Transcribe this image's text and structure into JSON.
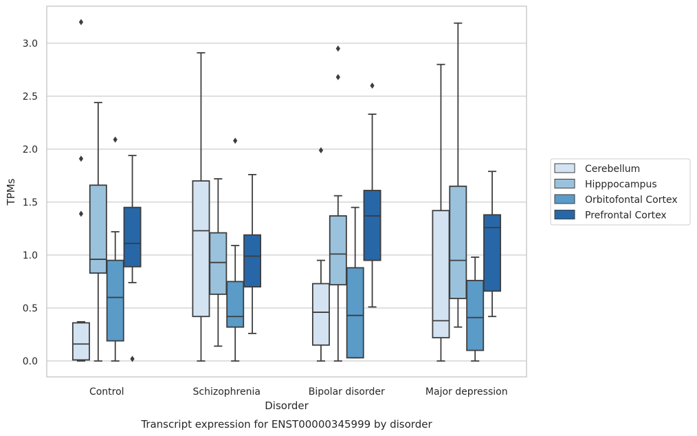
{
  "chart_data": {
    "type": "box",
    "title": "Transcript expression for ENST00000345999 by disorder",
    "xlabel": "Disorder",
    "ylabel": "TPMs",
    "ylim": [
      -0.15,
      3.35
    ],
    "yticks": [
      "0.0",
      "0.5",
      "1.0",
      "1.5",
      "2.0",
      "2.5",
      "3.0"
    ],
    "grid": true,
    "legend_position": "right",
    "categories": [
      "Control",
      "Schizophrenia",
      "Bipolar disorder",
      "Major depression"
    ],
    "series": [
      {
        "name": "Cerebellum",
        "color": "#d4e3f2",
        "boxes": [
          {
            "category": "Control",
            "min": 0.0,
            "q1": 0.01,
            "median": 0.16,
            "q3": 0.36,
            "max": 0.37,
            "outliers": [
              3.2,
              1.91,
              1.39
            ]
          },
          {
            "category": "Schizophrenia",
            "min": 0.0,
            "q1": 0.42,
            "median": 1.23,
            "q3": 1.7,
            "max": 2.91,
            "outliers": []
          },
          {
            "category": "Bipolar disorder",
            "min": 0.0,
            "q1": 0.15,
            "median": 0.46,
            "q3": 0.73,
            "max": 0.95,
            "outliers": [
              1.99
            ]
          },
          {
            "category": "Major depression",
            "min": 0.0,
            "q1": 0.22,
            "median": 0.38,
            "q3": 1.42,
            "max": 2.8,
            "outliers": []
          }
        ]
      },
      {
        "name": "Hipppocampus",
        "color": "#9ac2dc",
        "boxes": [
          {
            "category": "Control",
            "min": 0.0,
            "q1": 0.83,
            "median": 0.96,
            "q3": 1.66,
            "max": 2.44,
            "outliers": []
          },
          {
            "category": "Schizophrenia",
            "min": 0.14,
            "q1": 0.63,
            "median": 0.93,
            "q3": 1.21,
            "max": 1.72,
            "outliers": []
          },
          {
            "category": "Bipolar disorder",
            "min": 0.0,
            "q1": 0.72,
            "median": 1.01,
            "q3": 1.37,
            "max": 1.56,
            "outliers": [
              2.95,
              2.68
            ]
          },
          {
            "category": "Major depression",
            "min": 0.32,
            "q1": 0.59,
            "median": 0.95,
            "q3": 1.65,
            "max": 3.19,
            "outliers": []
          }
        ]
      },
      {
        "name": "Orbitofontal Cortex",
        "color": "#5a9bc8",
        "boxes": [
          {
            "category": "Control",
            "min": 0.0,
            "q1": 0.19,
            "median": 0.6,
            "q3": 0.95,
            "max": 1.22,
            "outliers": [
              2.09
            ]
          },
          {
            "category": "Schizophrenia",
            "min": 0.0,
            "q1": 0.32,
            "median": 0.42,
            "q3": 0.75,
            "max": 1.09,
            "outliers": [
              2.08
            ]
          },
          {
            "category": "Bipolar disorder",
            "min": 0.03,
            "q1": 0.03,
            "median": 0.43,
            "q3": 0.88,
            "max": 1.45,
            "outliers": []
          },
          {
            "category": "Major depression",
            "min": 0.0,
            "q1": 0.1,
            "median": 0.41,
            "q3": 0.76,
            "max": 0.98,
            "outliers": []
          }
        ]
      },
      {
        "name": "Prefrontal Cortex",
        "color": "#2767a8",
        "boxes": [
          {
            "category": "Control",
            "min": 0.74,
            "q1": 0.89,
            "median": 1.11,
            "q3": 1.45,
            "max": 1.94,
            "outliers": [
              0.02
            ]
          },
          {
            "category": "Schizophrenia",
            "min": 0.26,
            "q1": 0.7,
            "median": 0.99,
            "q3": 1.19,
            "max": 1.76,
            "outliers": []
          },
          {
            "category": "Bipolar disorder",
            "min": 0.51,
            "q1": 0.95,
            "median": 1.37,
            "q3": 1.61,
            "max": 2.33,
            "outliers": [
              2.6
            ]
          },
          {
            "category": "Major depression",
            "min": 0.42,
            "q1": 0.66,
            "median": 1.26,
            "q3": 1.38,
            "max": 1.79,
            "outliers": []
          }
        ]
      }
    ]
  }
}
